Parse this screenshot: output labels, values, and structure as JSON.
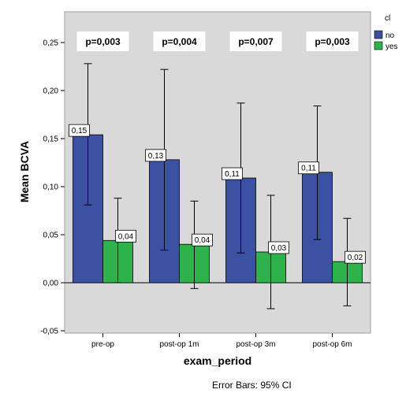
{
  "chart_data": {
    "type": "bar",
    "categories": [
      "pre-op",
      "post-op 1m",
      "post-op 3m",
      "post-op 6m"
    ],
    "series": [
      {
        "name": "no",
        "color": "#3b52a3",
        "values": [
          0.154,
          0.128,
          0.109,
          0.115
        ],
        "ci_low": [
          0.081,
          0.034,
          0.031,
          0.045
        ],
        "ci_high": [
          0.228,
          0.222,
          0.187,
          0.184
        ],
        "labels": [
          "0,15",
          "0,13",
          "0,11",
          "0,11"
        ]
      },
      {
        "name": "yes",
        "color": "#2eb34c",
        "values": [
          0.044,
          0.04,
          0.032,
          0.022
        ],
        "ci_low": [
          0.0,
          -0.006,
          -0.027,
          -0.024
        ],
        "ci_high": [
          0.088,
          0.085,
          0.091,
          0.067
        ],
        "labels": [
          "0,04",
          "0,04",
          "0,03",
          "0,02"
        ]
      }
    ],
    "p_values": [
      "p=0,003",
      "p=0,004",
      "p=0,007",
      "p=0,003"
    ],
    "ylim": [
      -0.05,
      0.28
    ],
    "yticks": [
      -0.05,
      0.0,
      0.05,
      0.1,
      0.15,
      0.2,
      0.25
    ],
    "ytick_labels": [
      "-0,05",
      "0,00",
      "0,05",
      "0,10",
      "0,15",
      "0,20",
      "0,25"
    ],
    "xlabel": "exam_period",
    "ylabel": "Mean BCVA",
    "legend_title": "cl",
    "legend_position": "top-right",
    "footnote": "Error Bars: 95% CI",
    "plot_background": "#d9d9d9",
    "grid": false
  }
}
